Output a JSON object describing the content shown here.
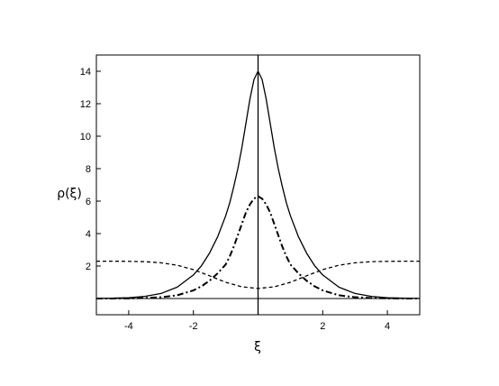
{
  "chart_data": {
    "type": "line",
    "title": "",
    "xlabel": "ξ",
    "ylabel": "ρ(ξ)",
    "xlim": [
      -5,
      5
    ],
    "ylim": [
      -1,
      15
    ],
    "xticks": [
      -4,
      -2,
      2,
      4
    ],
    "xtick_labels": [
      "-4",
      "-2",
      "2",
      "4"
    ],
    "yticks": [
      2,
      4,
      6,
      8,
      10,
      12,
      14
    ],
    "ytick_labels": [
      "2",
      "4",
      "6",
      "8",
      "10",
      "12",
      "14"
    ],
    "grid": false,
    "legend": "none",
    "zero_lines": true,
    "series": [
      {
        "style": "solid",
        "color": "#000000",
        "x": [
          -5,
          -4.5,
          -4,
          -3.5,
          -3,
          -2.5,
          -2,
          -1.75,
          -1.5,
          -1.25,
          -1,
          -0.875,
          -0.75,
          -0.625,
          -0.5,
          -0.375,
          -0.25,
          -0.125,
          0,
          0.125,
          0.25,
          0.375,
          0.5,
          0.625,
          0.75,
          0.875,
          1,
          1.25,
          1.5,
          1.75,
          2,
          2.5,
          3,
          3.5,
          4,
          4.5,
          5
        ],
        "y": [
          0.007,
          0.02,
          0.05,
          0.13,
          0.31,
          0.7,
          1.45,
          2.02,
          2.8,
          3.8,
          5.1,
          5.9,
          6.9,
          8.0,
          9.3,
          10.8,
          12.3,
          13.5,
          14.0,
          13.5,
          12.3,
          10.8,
          9.3,
          8.0,
          6.9,
          5.9,
          5.1,
          3.8,
          2.8,
          2.02,
          1.45,
          0.7,
          0.31,
          0.13,
          0.05,
          0.02,
          0.007
        ]
      },
      {
        "style": "dash-dot",
        "color": "#000000",
        "x": [
          -5,
          -4.5,
          -4,
          -3.5,
          -3,
          -2.5,
          -2,
          -1.75,
          -1.5,
          -1.25,
          -1,
          -0.875,
          -0.75,
          -0.625,
          -0.5,
          -0.375,
          -0.25,
          -0.125,
          0,
          0.125,
          0.25,
          0.375,
          0.5,
          0.625,
          0.75,
          0.875,
          1,
          1.25,
          1.5,
          1.75,
          2,
          2.5,
          3,
          3.5,
          4,
          4.5,
          5
        ],
        "y": [
          0.001,
          0.003,
          0.009,
          0.03,
          0.08,
          0.2,
          0.5,
          0.75,
          1.1,
          1.55,
          2.1,
          2.6,
          3.2,
          3.9,
          4.6,
          5.3,
          5.8,
          6.15,
          6.3,
          6.15,
          5.8,
          5.3,
          4.6,
          3.9,
          3.2,
          2.6,
          2.1,
          1.55,
          1.1,
          0.75,
          0.5,
          0.2,
          0.08,
          0.03,
          0.009,
          0.003,
          0.001
        ]
      },
      {
        "style": "dashed",
        "color": "#000000",
        "x": [
          -5,
          -4.5,
          -4,
          -3.5,
          -3,
          -2.5,
          -2,
          -1.5,
          -1,
          -0.5,
          0,
          0.5,
          1,
          1.5,
          2,
          2.5,
          3,
          3.5,
          4,
          4.5,
          5
        ],
        "y": [
          2.3,
          2.3,
          2.29,
          2.27,
          2.2,
          2.05,
          1.78,
          1.4,
          1.0,
          0.72,
          0.62,
          0.72,
          1.0,
          1.4,
          1.78,
          2.05,
          2.2,
          2.27,
          2.29,
          2.3,
          2.3
        ]
      }
    ]
  }
}
